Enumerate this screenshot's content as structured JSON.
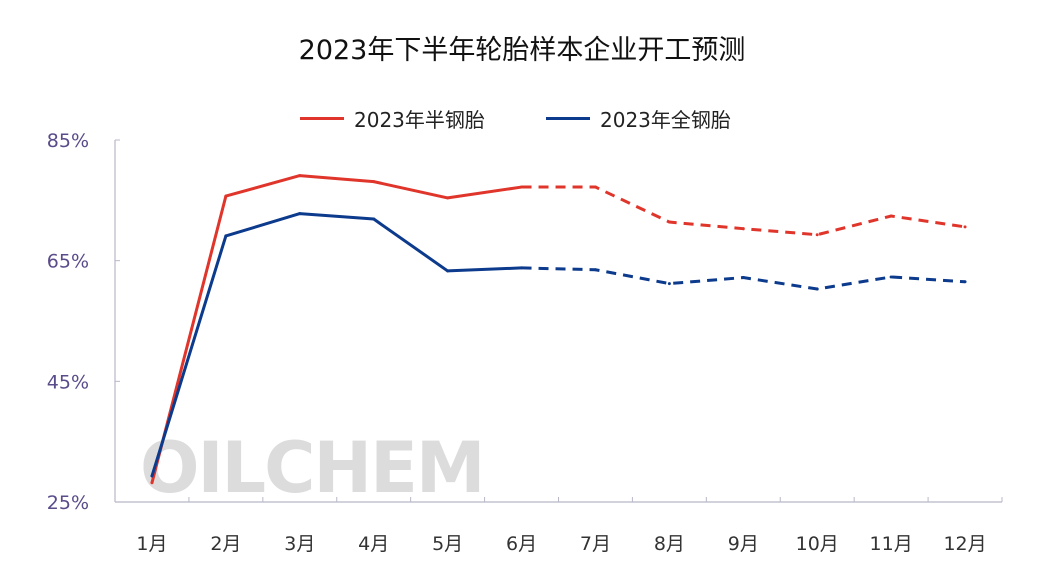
{
  "chart_data": {
    "type": "line",
    "title": "2023年下半年轮胎样本企业开工预测",
    "categories": [
      "1月",
      "2月",
      "3月",
      "4月",
      "5月",
      "6月",
      "7月",
      "8月",
      "9月",
      "10月",
      "11月",
      "12月"
    ],
    "yticks": [
      "25%",
      "45%",
      "65%",
      "85%"
    ],
    "ylim": [
      25,
      85
    ],
    "xlabel": "",
    "ylabel": "",
    "legend_position": "top-center",
    "watermark": "OILCHEM",
    "forecast_from_index": 5,
    "series": [
      {
        "name": "2023年半钢胎",
        "color": "#e0352b",
        "values": [
          28.2,
          75.7,
          79.1,
          78.1,
          75.4,
          77.2,
          77.2,
          71.4,
          70.3,
          69.3,
          72.4,
          70.6
        ]
      },
      {
        "name": "2023年全钢胎",
        "color": "#0c3a8c",
        "values": [
          29.3,
          69.1,
          72.8,
          71.9,
          63.3,
          63.8,
          63.5,
          61.2,
          62.2,
          60.3,
          62.3,
          61.5
        ]
      }
    ]
  }
}
